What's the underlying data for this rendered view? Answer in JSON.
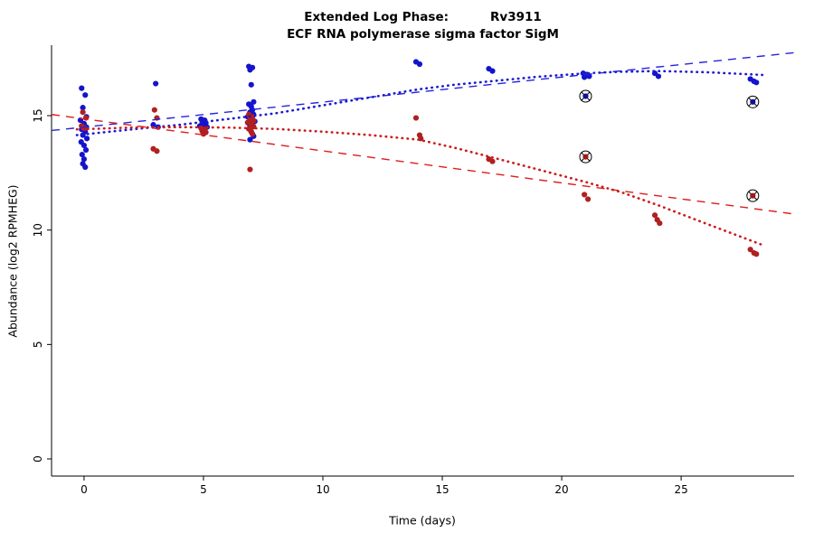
{
  "chart_data": {
    "type": "scatter",
    "title": "Extended Log Phase:",
    "title_gene": "Rv3911",
    "subtitle": "ECF RNA polymerase sigma factor SigM",
    "xlabel": "Time  (days)",
    "ylabel": "Abundance  (log2 RPMHEG)",
    "xlim": [
      -1.36,
      29.73
    ],
    "ylim": [
      -0.75,
      18.08
    ],
    "x_ticks": [
      0,
      5,
      10,
      15,
      20,
      25
    ],
    "y_ticks": [
      0,
      5,
      10,
      15
    ],
    "grid": false,
    "legend": "none",
    "series": [
      {
        "name": "blue-series",
        "color": "#1414cc",
        "points": [
          [
            -0.1,
            16.2
          ],
          [
            0.05,
            15.9
          ],
          [
            -0.05,
            15.35
          ],
          [
            0.1,
            14.95
          ],
          [
            -0.15,
            14.8
          ],
          [
            0.0,
            14.65
          ],
          [
            0.1,
            14.5
          ],
          [
            -0.1,
            14.4
          ],
          [
            0.05,
            14.3
          ],
          [
            -0.05,
            14.15
          ],
          [
            0.12,
            14.0
          ],
          [
            -0.12,
            13.85
          ],
          [
            0.0,
            13.7
          ],
          [
            0.08,
            13.5
          ],
          [
            -0.08,
            13.3
          ],
          [
            0.0,
            13.1
          ],
          [
            -0.05,
            12.9
          ],
          [
            0.05,
            12.75
          ],
          [
            3.0,
            16.4
          ],
          [
            2.9,
            14.6
          ],
          [
            3.1,
            14.5
          ],
          [
            4.9,
            14.85
          ],
          [
            5.05,
            14.8
          ],
          [
            4.95,
            14.72
          ],
          [
            5.1,
            14.68
          ],
          [
            5.0,
            14.6
          ],
          [
            4.85,
            14.55
          ],
          [
            5.15,
            14.5
          ],
          [
            6.9,
            17.15
          ],
          [
            7.05,
            17.1
          ],
          [
            6.95,
            17.0
          ],
          [
            7.0,
            16.35
          ],
          [
            7.1,
            15.6
          ],
          [
            6.9,
            15.5
          ],
          [
            7.0,
            15.4
          ],
          [
            7.05,
            15.25
          ],
          [
            6.95,
            15.15
          ],
          [
            7.1,
            15.05
          ],
          [
            6.85,
            14.95
          ],
          [
            7.0,
            14.85
          ],
          [
            7.15,
            14.75
          ],
          [
            6.9,
            14.65
          ],
          [
            7.05,
            14.55
          ],
          [
            6.95,
            14.45
          ],
          [
            7.0,
            14.3
          ],
          [
            7.1,
            14.1
          ],
          [
            6.95,
            13.95
          ],
          [
            13.9,
            17.35
          ],
          [
            14.05,
            17.25
          ],
          [
            16.95,
            17.05
          ],
          [
            17.1,
            16.95
          ],
          [
            20.9,
            16.85
          ],
          [
            21.05,
            16.8
          ],
          [
            21.15,
            16.72
          ],
          [
            20.95,
            16.68
          ],
          [
            23.9,
            16.85
          ],
          [
            24.05,
            16.72
          ],
          [
            27.9,
            16.6
          ],
          [
            28.05,
            16.5
          ],
          [
            28.15,
            16.45
          ]
        ]
      },
      {
        "name": "red-series",
        "color": "#b02020",
        "points": [
          [
            -0.05,
            15.15
          ],
          [
            0.08,
            14.9
          ],
          [
            -0.1,
            14.55
          ],
          [
            0.05,
            14.45
          ],
          [
            2.95,
            15.25
          ],
          [
            3.05,
            14.9
          ],
          [
            2.9,
            13.55
          ],
          [
            3.05,
            13.45
          ],
          [
            4.9,
            14.45
          ],
          [
            5.05,
            14.4
          ],
          [
            4.95,
            14.32
          ],
          [
            5.1,
            14.27
          ],
          [
            5.0,
            14.2
          ],
          [
            6.9,
            15.05
          ],
          [
            7.05,
            14.95
          ],
          [
            6.95,
            14.85
          ],
          [
            7.1,
            14.78
          ],
          [
            6.85,
            14.7
          ],
          [
            7.0,
            14.62
          ],
          [
            7.1,
            14.52
          ],
          [
            6.9,
            14.42
          ],
          [
            7.0,
            14.3
          ],
          [
            7.05,
            14.2
          ],
          [
            6.95,
            12.65
          ],
          [
            13.9,
            14.9
          ],
          [
            14.05,
            14.15
          ],
          [
            14.1,
            14.0
          ],
          [
            16.95,
            13.1
          ],
          [
            17.1,
            13.0
          ],
          [
            20.95,
            11.55
          ],
          [
            21.1,
            11.35
          ],
          [
            23.9,
            10.65
          ],
          [
            24.0,
            10.45
          ],
          [
            24.1,
            10.3
          ],
          [
            27.9,
            9.15
          ],
          [
            28.05,
            9.0
          ],
          [
            28.15,
            8.95
          ]
        ]
      }
    ],
    "outliers": [
      {
        "x": 21,
        "y": 15.85,
        "color": "#10109a"
      },
      {
        "x": 21,
        "y": 13.2,
        "color": "#a01818"
      },
      {
        "x": 28,
        "y": 15.6,
        "color": "#10109a"
      },
      {
        "x": 28,
        "y": 11.5,
        "color": "#a01818"
      }
    ],
    "trend_lines": [
      {
        "name": "blue-linear-fit",
        "style": "dashed",
        "color": "#2424dd",
        "points": [
          [
            -1.36,
            14.35
          ],
          [
            29.73,
            17.75
          ]
        ]
      },
      {
        "name": "red-linear-fit",
        "style": "dashed",
        "color": "#dd1c1c",
        "points": [
          [
            -1.36,
            15.05
          ],
          [
            29.73,
            10.7
          ]
        ]
      },
      {
        "name": "blue-loess-fit",
        "style": "dotted",
        "color": "#1a1ad2",
        "points": [
          [
            -0.3,
            14.15
          ],
          [
            2,
            14.4
          ],
          [
            4,
            14.6
          ],
          [
            6,
            14.85
          ],
          [
            8,
            15.1
          ],
          [
            10,
            15.45
          ],
          [
            12,
            15.8
          ],
          [
            14,
            16.15
          ],
          [
            15.5,
            16.35
          ],
          [
            17,
            16.5
          ],
          [
            19,
            16.7
          ],
          [
            21,
            16.85
          ],
          [
            22.5,
            16.92
          ],
          [
            24,
            16.95
          ],
          [
            26,
            16.9
          ],
          [
            28.4,
            16.78
          ]
        ]
      },
      {
        "name": "red-loess-fit",
        "style": "dotted",
        "color": "#cc1a1a",
        "points": [
          [
            -0.3,
            14.4
          ],
          [
            2,
            14.48
          ],
          [
            4,
            14.5
          ],
          [
            6,
            14.48
          ],
          [
            8,
            14.42
          ],
          [
            10,
            14.3
          ],
          [
            12,
            14.15
          ],
          [
            14,
            13.95
          ],
          [
            15.5,
            13.6
          ],
          [
            17,
            13.2
          ],
          [
            19,
            12.65
          ],
          [
            21,
            12.1
          ],
          [
            22.5,
            11.65
          ],
          [
            24,
            11.1
          ],
          [
            26,
            10.3
          ],
          [
            28.4,
            9.35
          ]
        ]
      }
    ]
  }
}
